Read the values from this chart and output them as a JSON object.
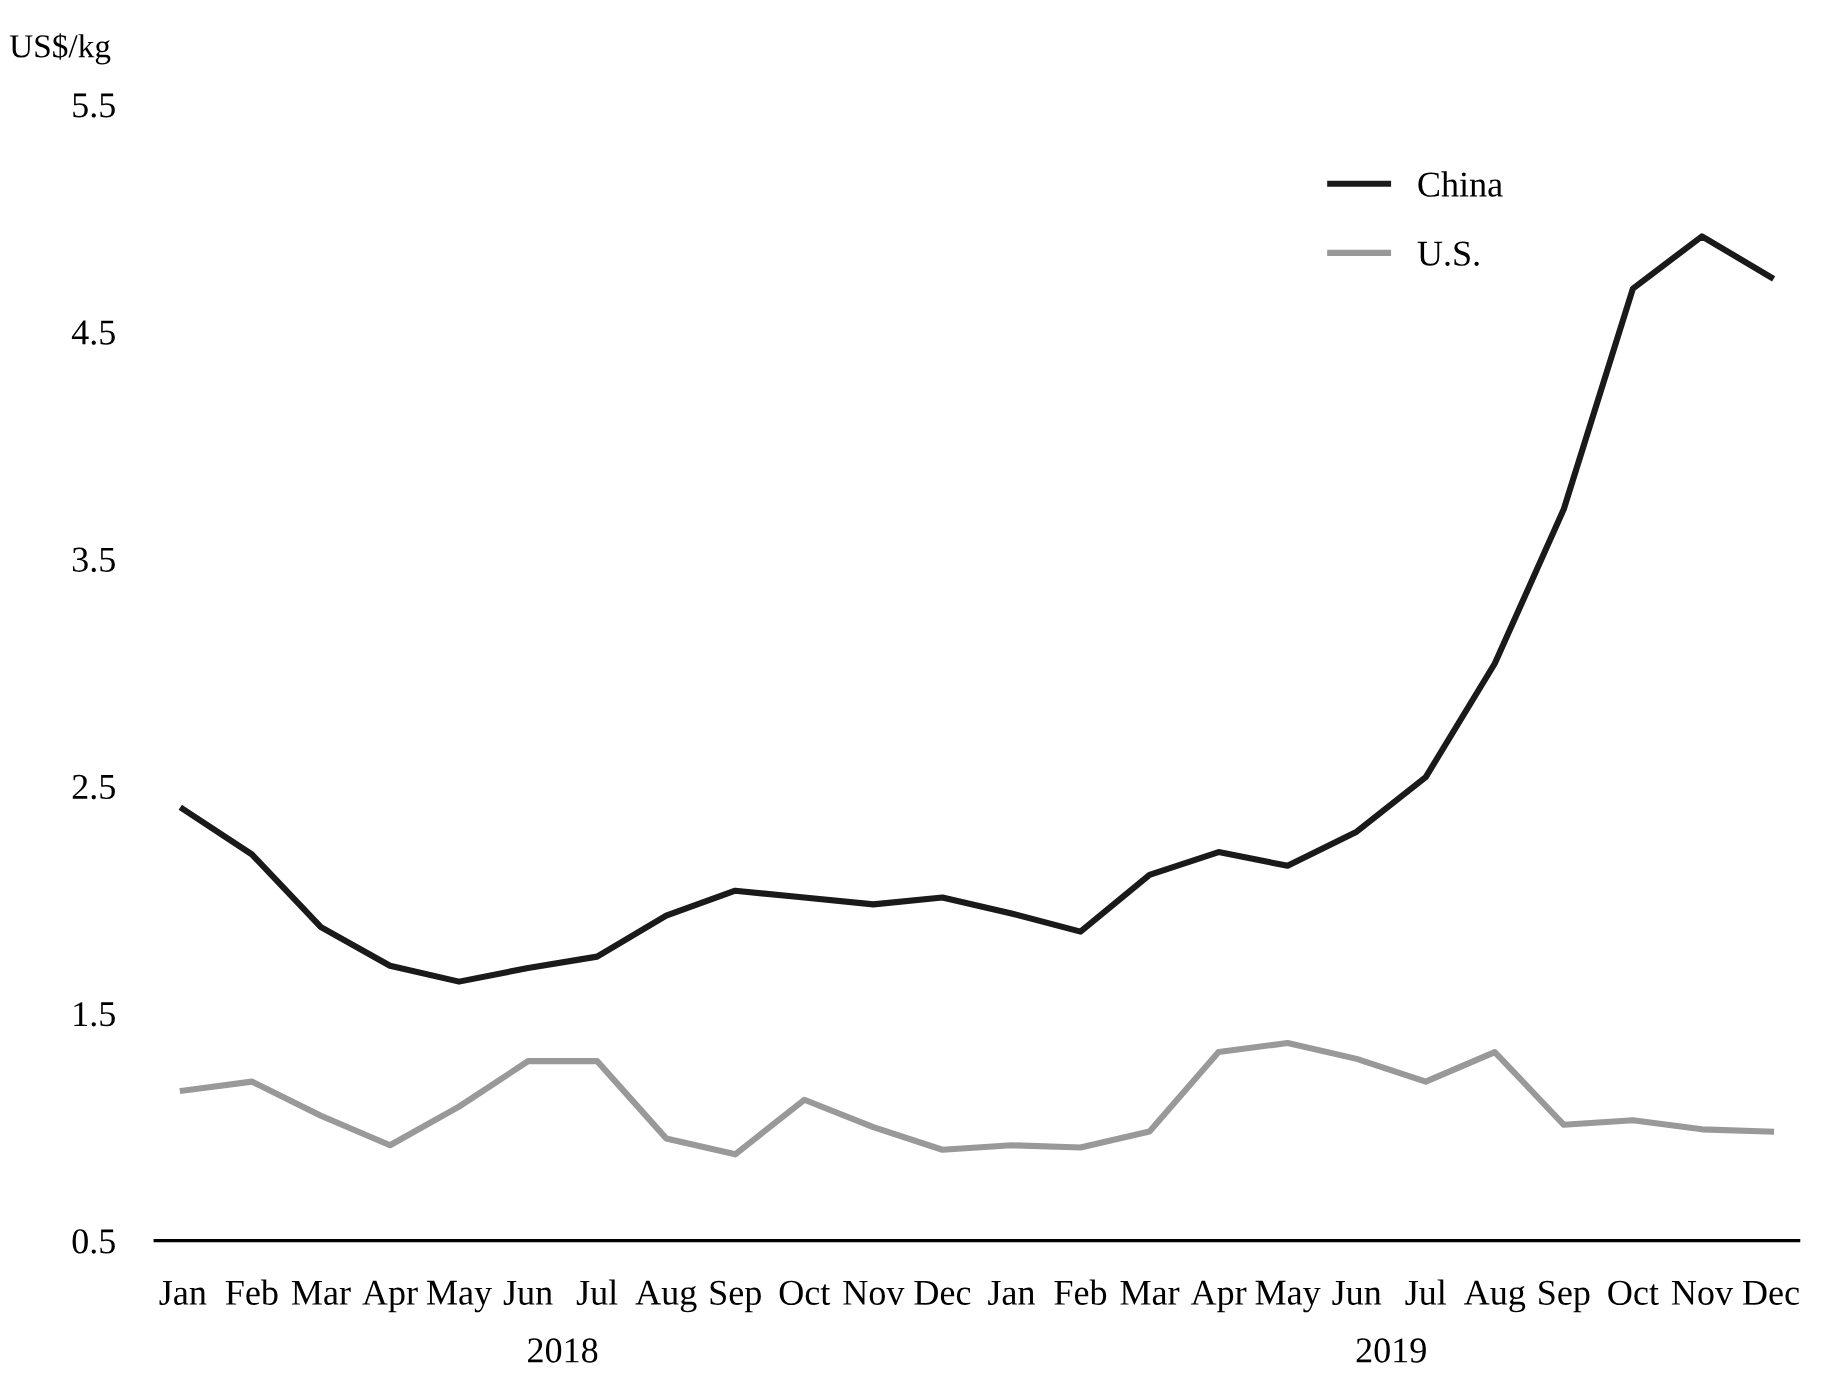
{
  "chart_data": {
    "type": "line",
    "ylabel": "US$/kg",
    "categories": [
      "Jan",
      "Feb",
      "Mar",
      "Apr",
      "May",
      "Jun",
      "Jul",
      "Aug",
      "Sep",
      "Oct",
      "Nov",
      "Dec",
      "Jan",
      "Feb",
      "Mar",
      "Apr",
      "May",
      "Jun",
      "Jul",
      "Aug",
      "Sep",
      "Oct",
      "Nov",
      "Dec"
    ],
    "series": [
      {
        "name": "China",
        "color": "#1a1a1a",
        "values": [
          2.4,
          2.2,
          1.88,
          1.71,
          1.64,
          1.7,
          1.75,
          1.93,
          2.04,
          2.01,
          1.98,
          2.01,
          1.94,
          1.86,
          2.11,
          2.21,
          2.15,
          2.3,
          2.54,
          3.04,
          3.72,
          4.69,
          4.92,
          4.74
        ]
      },
      {
        "name": "U.S.",
        "color": "#999999",
        "values": [
          1.16,
          1.2,
          1.05,
          0.92,
          1.09,
          1.29,
          1.29,
          0.95,
          0.88,
          1.12,
          1.0,
          0.9,
          0.92,
          0.91,
          0.98,
          1.33,
          1.37,
          1.3,
          1.2,
          1.33,
          1.01,
          1.03,
          0.99,
          0.98
        ]
      }
    ],
    "ylim": [
      0.5,
      5.5
    ],
    "yticks": [
      0.5,
      1.5,
      2.5,
      3.5,
      4.5,
      5.5
    ],
    "annotations": [
      "2018",
      "2019"
    ],
    "grid": false,
    "legend": "top right",
    "marker": "none",
    "line_style": "solid"
  }
}
